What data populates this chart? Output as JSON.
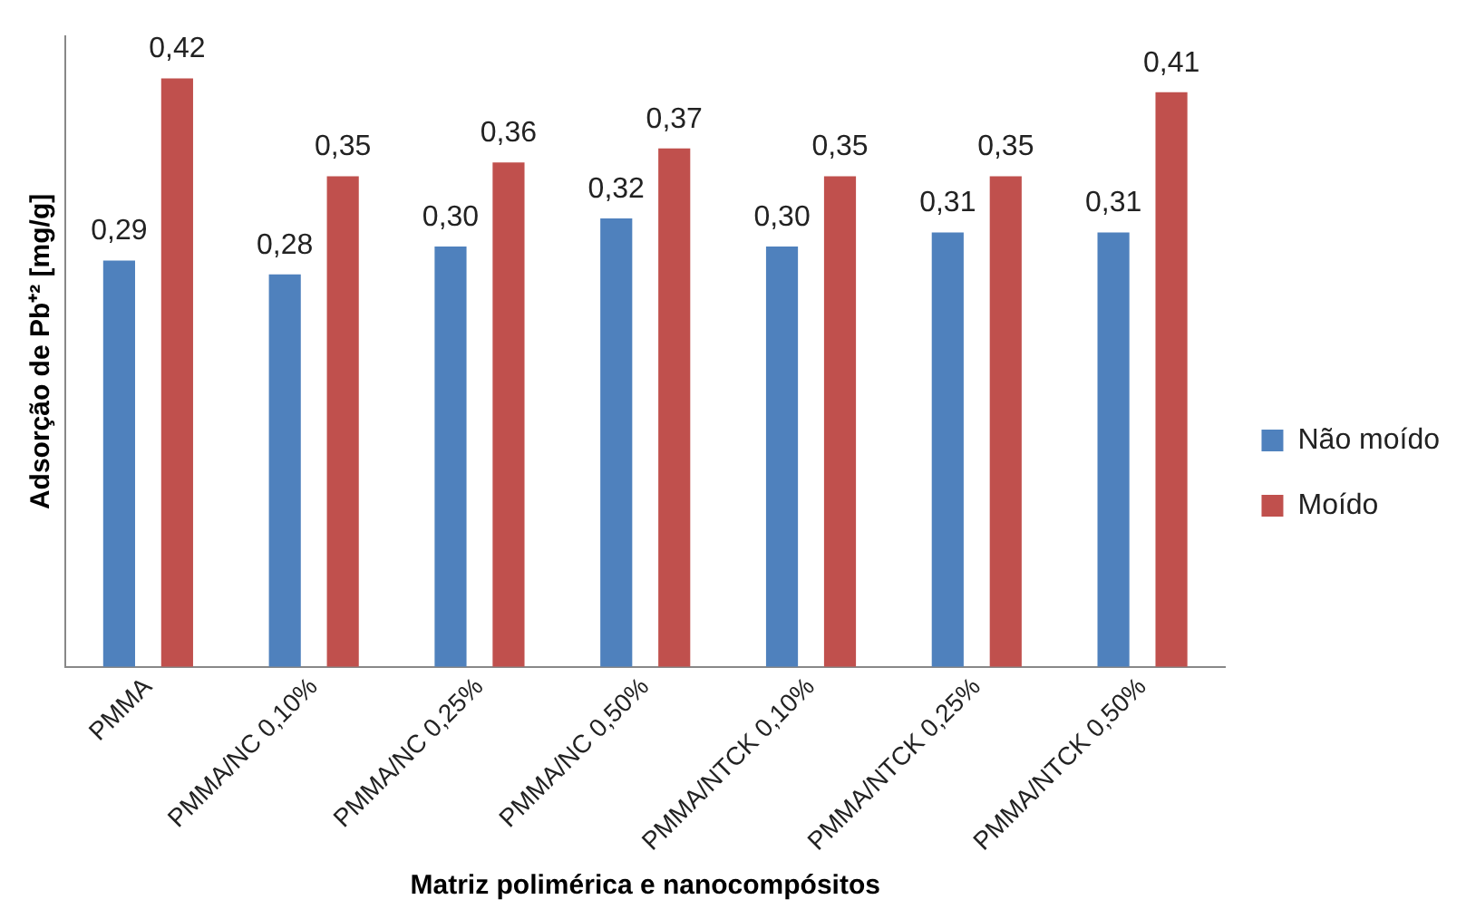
{
  "chart_data": {
    "type": "bar",
    "xlabel": "Matriz polimérica e nanocompósitos",
    "ylabel": "Adsorção de Pb⁺² [mg/g]",
    "categories": [
      "PMMA",
      "PMMA/NC 0,10%",
      "PMMA/NC 0,25%",
      "PMMA/NC 0,50%",
      "PMMA/NTCK 0,10%",
      "PMMA/NTCK 0,25%",
      "PMMA/NTCK 0,50%"
    ],
    "series": [
      {
        "name": "Não moído",
        "color": "#4f81bd",
        "values": [
          0.29,
          0.28,
          0.3,
          0.32,
          0.3,
          0.31,
          0.31
        ],
        "value_labels": [
          "0,29",
          "0,28",
          "0,30",
          "0,32",
          "0,30",
          "0,31",
          "0,31"
        ]
      },
      {
        "name": "Moído",
        "color": "#c0504d",
        "values": [
          0.42,
          0.35,
          0.36,
          0.37,
          0.35,
          0.35,
          0.41
        ],
        "value_labels": [
          "0,42",
          "0,35",
          "0,36",
          "0,37",
          "0,35",
          "0,35",
          "0,41"
        ]
      }
    ],
    "grid": false,
    "legend": "right"
  }
}
